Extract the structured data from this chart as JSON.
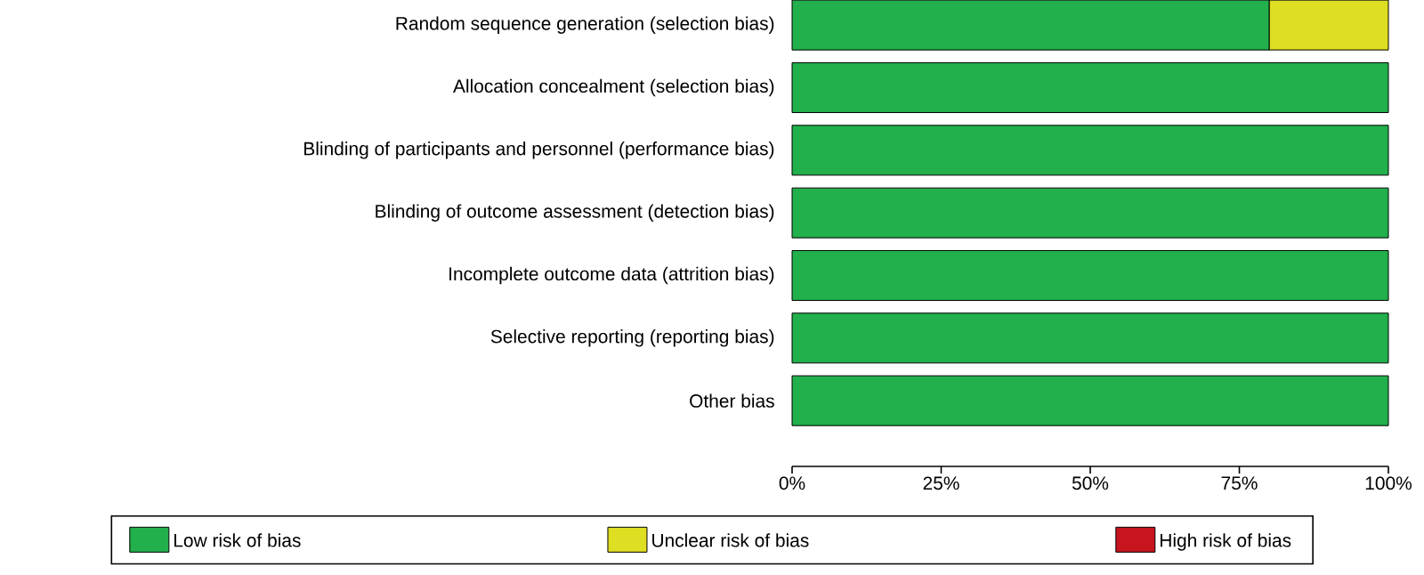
{
  "chart_data": {
    "type": "bar",
    "orientation": "horizontal",
    "stacked": true,
    "categories": [
      "Random sequence generation (selection bias)",
      "Allocation concealment (selection bias)",
      "Blinding of participants and personnel (performance bias)",
      "Blinding of outcome assessment (detection bias)",
      "Incomplete outcome data (attrition bias)",
      "Selective reporting (reporting bias)",
      "Other bias"
    ],
    "series": [
      {
        "name": "Low risk of bias",
        "color": "#21b04b",
        "values": [
          80,
          100,
          100,
          100,
          100,
          100,
          100
        ]
      },
      {
        "name": "Unclear risk of bias",
        "color": "#dede22",
        "values": [
          20,
          0,
          0,
          0,
          0,
          0,
          0
        ]
      },
      {
        "name": "High risk of bias",
        "color": "#c8141e",
        "values": [
          0,
          0,
          0,
          0,
          0,
          0,
          0
        ]
      }
    ],
    "xlim": [
      0,
      100
    ],
    "xticks": [
      {
        "value": 0,
        "label": "0%"
      },
      {
        "value": 25,
        "label": "25%"
      },
      {
        "value": 50,
        "label": "50%"
      },
      {
        "value": 75,
        "label": "75%"
      },
      {
        "value": 100,
        "label": "100%"
      }
    ],
    "grid": false,
    "legend": "bottom"
  }
}
